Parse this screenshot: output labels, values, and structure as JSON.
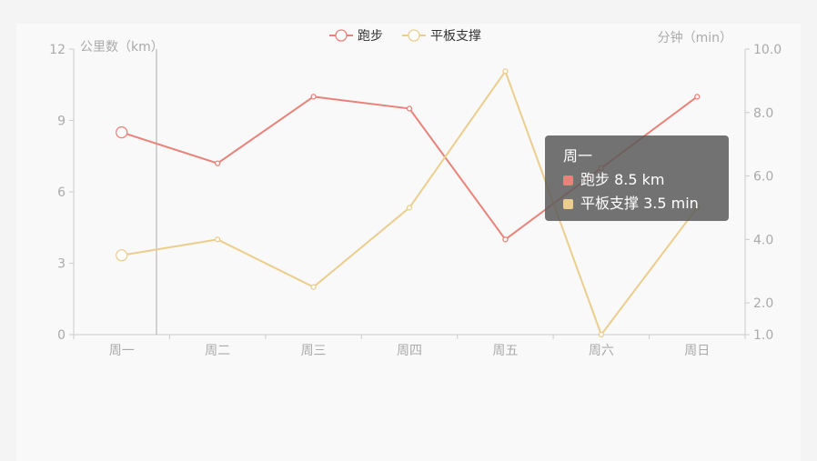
{
  "chart_data": {
    "type": "line",
    "categories": [
      "周一",
      "周二",
      "周三",
      "周四",
      "周五",
      "周六",
      "周日"
    ],
    "series": [
      {
        "name": "跑步",
        "axis": "left",
        "color": "#e8837a",
        "values": [
          8.5,
          7.2,
          10,
          9.5,
          4,
          7,
          10
        ]
      },
      {
        "name": "平板支撑",
        "axis": "right",
        "color": "#ebce8e",
        "values": [
          3.5,
          4.0,
          2.5,
          5.0,
          9.3,
          1.0,
          5.0
        ]
      }
    ],
    "y_left": {
      "label": "公里数（km）",
      "min": 0,
      "max": 12,
      "ticks": [
        "0",
        "3",
        "6",
        "9",
        "12"
      ]
    },
    "y_right": {
      "label": "分钟（min）",
      "min": 1,
      "max": 10,
      "ticks": [
        "1.0",
        "2.0",
        "4.0",
        "6.0",
        "8.0",
        "10.0"
      ]
    },
    "legend": "top-center",
    "grid": false
  },
  "tooltip": {
    "title": "周一",
    "rows": [
      {
        "label": "跑步 8.5 km",
        "color": "#e8837a"
      },
      {
        "label": "平板支撑 3.5 min",
        "color": "#ebce8e"
      }
    ]
  }
}
